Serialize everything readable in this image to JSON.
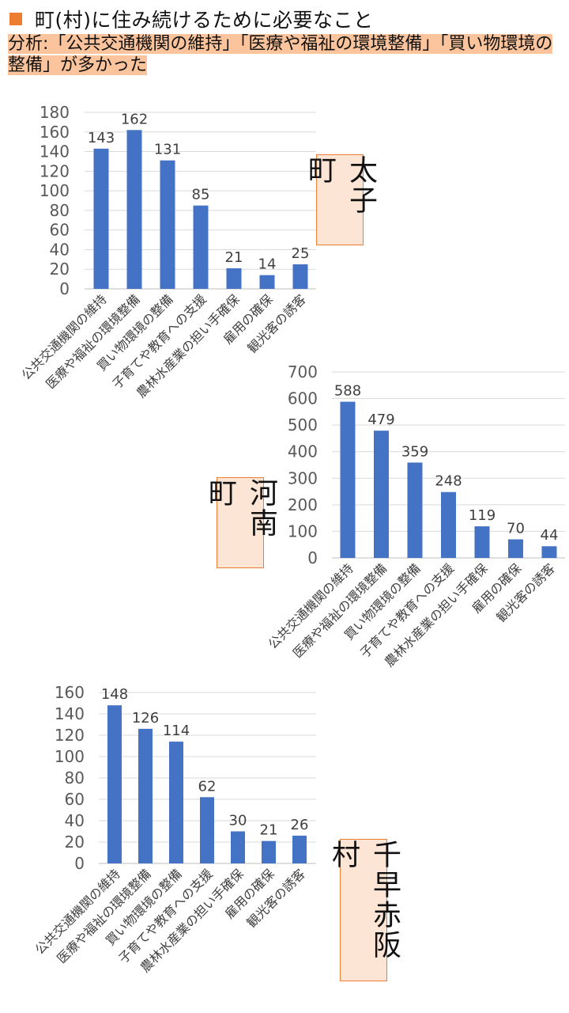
{
  "header": {
    "title": "町(村)に住み続けるために必要なこと",
    "analysis": "分析:「公共交通機関の維持」「医療や福祉の環境整備」「買い物環境の整備」が多かった"
  },
  "colors": {
    "bar": "#4472c4",
    "accent": "#ed7d31",
    "label_bg": "#fde5d5",
    "highlight": "#fbc49c"
  },
  "chart_data": [
    {
      "type": "bar",
      "label": "太子町",
      "categories": [
        "公共交通機関の維持",
        "医療や福祉の環境整備",
        "買い物環境の整備",
        "子育てや教育への支援",
        "農林水産業の担い手確保",
        "雇用の確保",
        "観光客の誘客"
      ],
      "values": [
        143,
        162,
        131,
        85,
        21,
        14,
        25
      ],
      "ylim": [
        0,
        180
      ],
      "yticks": [
        0,
        20,
        40,
        60,
        80,
        100,
        120,
        140,
        160,
        180
      ],
      "grid": true
    },
    {
      "type": "bar",
      "label": "河南町",
      "categories": [
        "公共交通機関の維持",
        "医療や福祉の環境整備",
        "買い物環境の整備",
        "子育てや教育への支援",
        "農林水産業の担い手確保",
        "雇用の確保",
        "観光客の誘客"
      ],
      "values": [
        588,
        479,
        359,
        248,
        119,
        70,
        44
      ],
      "ylim": [
        0,
        700
      ],
      "yticks": [
        0,
        100,
        200,
        300,
        400,
        500,
        600,
        700
      ],
      "grid": true
    },
    {
      "type": "bar",
      "label": "千早赤阪村",
      "categories": [
        "公共交通機関の維持",
        "医療や福祉の環境整備",
        "買い物環境の整備",
        "子育てや教育への支援",
        "農林水産業の担い手確保",
        "雇用の確保",
        "観光客の誘客"
      ],
      "values": [
        148,
        126,
        114,
        62,
        30,
        21,
        26
      ],
      "ylim": [
        0,
        160
      ],
      "yticks": [
        0,
        20,
        40,
        60,
        80,
        100,
        120,
        140,
        160
      ],
      "grid": true
    }
  ]
}
